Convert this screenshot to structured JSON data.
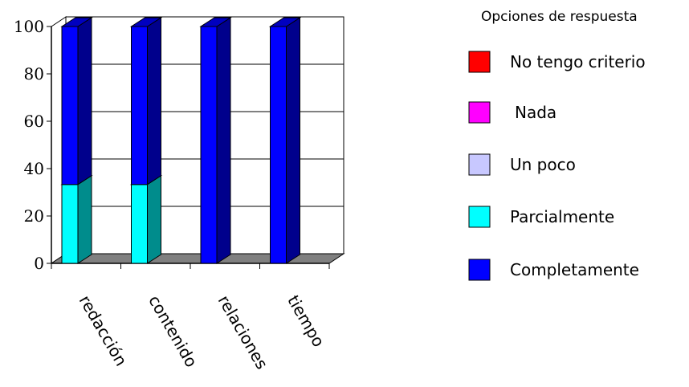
{
  "chart_data": {
    "type": "bar",
    "stacked": true,
    "three_d": true,
    "categories": [
      "redacción",
      "contenido",
      "relaciones",
      "tiempo"
    ],
    "series": [
      {
        "name": "No tengo criterio",
        "color": "#ff0000",
        "values": [
          0,
          0,
          0,
          0
        ]
      },
      {
        "name": "Nada",
        "color": "#ff00ff",
        "values": [
          0,
          0,
          0,
          0
        ]
      },
      {
        "name": "Un poco",
        "color": "#c8c8ff",
        "values": [
          0,
          0,
          0,
          0
        ]
      },
      {
        "name": "Parcialmente",
        "color": "#00ffff",
        "values": [
          33.3,
          33.3,
          0,
          0
        ]
      },
      {
        "name": "Completamente",
        "color": "#0000ff",
        "values": [
          66.7,
          66.7,
          100,
          100
        ]
      }
    ],
    "ylim": [
      0,
      100
    ],
    "yticks": [
      0,
      20,
      40,
      60,
      80,
      100
    ],
    "grid": true,
    "legend_title": "Opciones de respuesta",
    "legend_position": "right"
  }
}
